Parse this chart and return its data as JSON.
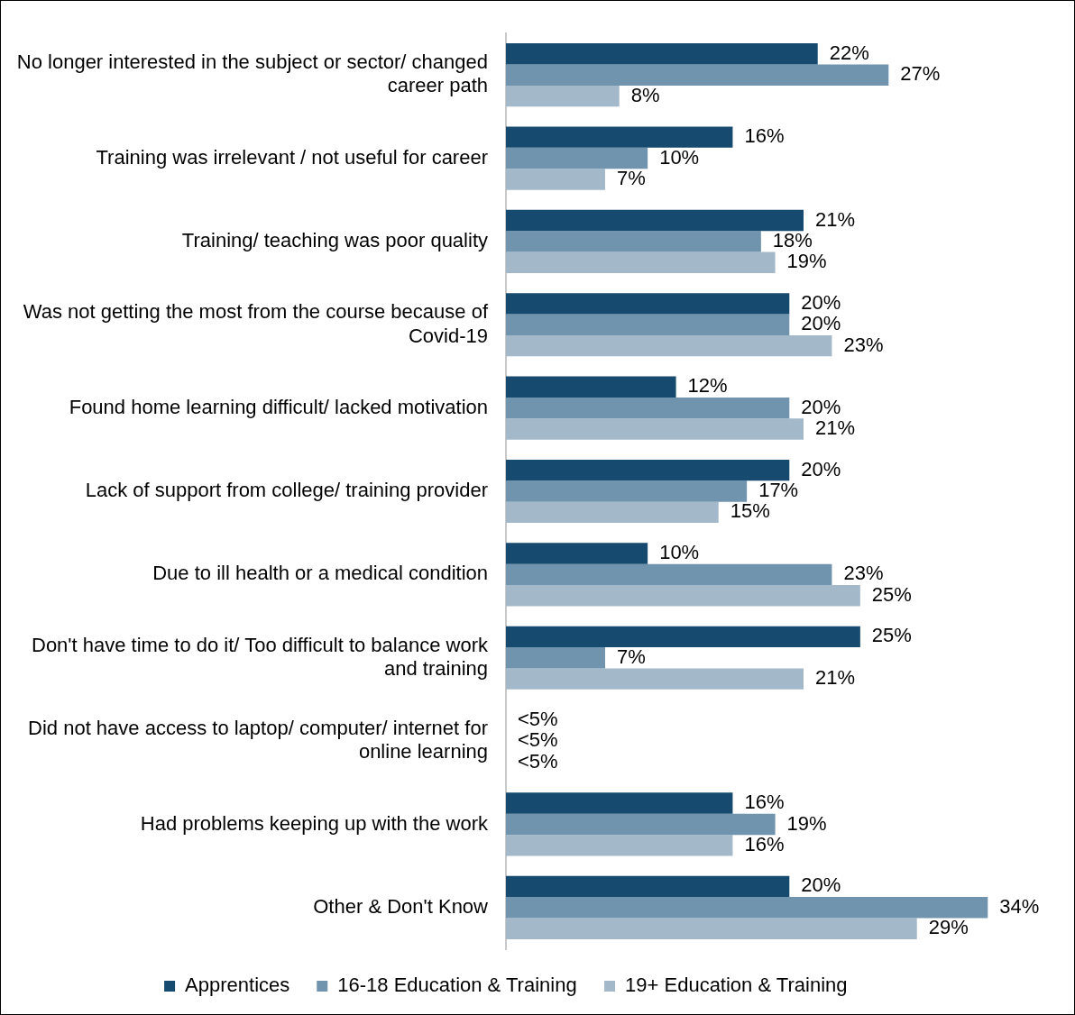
{
  "chart_data": {
    "type": "bar",
    "orientation": "horizontal",
    "legend": "bottom",
    "grid": false,
    "categories": [
      "No longer interested in the subject or sector/ changed career path",
      "Training was irrelevant / not useful for career",
      "Training/ teaching was poor quality",
      "Was not getting the most from the course because of Covid-19",
      "Found home learning difficult/ lacked motivation",
      "Lack of support from college/ training provider",
      "Due to ill health or a medical condition",
      "Don't have time to do it/ Too difficult to balance work and training",
      "Did not have access to laptop/ computer/ internet for online learning",
      "Had problems keeping up with the work",
      "Other & Don't Know"
    ],
    "series": [
      {
        "name": "Apprentices",
        "color": "#164a6e",
        "values": [
          22,
          16,
          21,
          20,
          12,
          20,
          10,
          25,
          null,
          16,
          20
        ],
        "value_labels": [
          "22%",
          "16%",
          "21%",
          "20%",
          "12%",
          "20%",
          "10%",
          "25%",
          "<5%",
          "16%",
          "20%"
        ]
      },
      {
        "name": "16-18 Education & Training",
        "color": "#7094ae",
        "values": [
          27,
          10,
          18,
          20,
          20,
          17,
          23,
          7,
          null,
          19,
          34
        ],
        "value_labels": [
          "27%",
          "10%",
          "18%",
          "20%",
          "20%",
          "17%",
          "23%",
          "7%",
          "<5%",
          "19%",
          "34%"
        ]
      },
      {
        "name": "19+ Education & Training",
        "color": "#a3b8c9",
        "values": [
          8,
          7,
          19,
          23,
          21,
          15,
          25,
          21,
          null,
          16,
          29
        ],
        "value_labels": [
          "8%",
          "7%",
          "19%",
          "23%",
          "21%",
          "15%",
          "25%",
          "21%",
          "<5%",
          "16%",
          "29%"
        ]
      }
    ]
  }
}
